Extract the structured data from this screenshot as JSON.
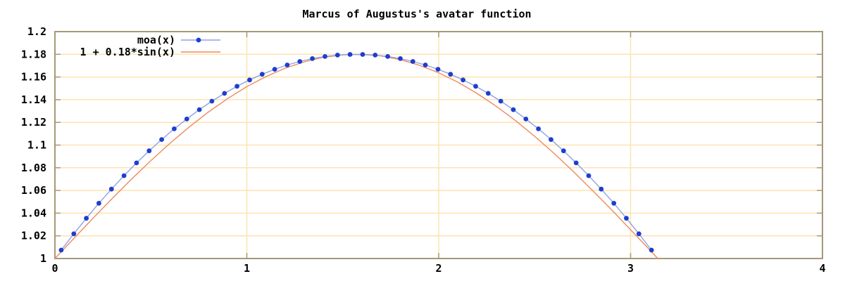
{
  "chart_data": {
    "type": "line",
    "title": "Marcus of Augustus's avatar function",
    "xlabel": "",
    "ylabel": "",
    "xlim": [
      0,
      4
    ],
    "ylim": [
      1,
      1.2
    ],
    "xticks": [
      0,
      1,
      2,
      3,
      4
    ],
    "xtick_labels": [
      "0",
      "1",
      "2",
      "3",
      "4"
    ],
    "yticks": [
      1,
      1.02,
      1.04,
      1.06,
      1.08,
      1.1,
      1.12,
      1.14,
      1.16,
      1.18,
      1.2
    ],
    "ytick_labels": [
      "1",
      "1.02",
      "1.04",
      "1.06",
      "1.08",
      "1.1",
      "1.12",
      "1.14",
      "1.16",
      "1.18",
      "1.2"
    ],
    "grid": true,
    "legend_position": "top-left-inside",
    "colors": {
      "background": "#ffffff",
      "grid": "#ffe2b0",
      "border": "#a89878",
      "text": "#000000",
      "series_moa_marker": "#1e3ecd",
      "series_moa_line": "#8ea0e8",
      "series_sine_line": "#ee8a5c"
    },
    "series": [
      {
        "name": "moa(x)",
        "marker": "point",
        "points": [
          [
            0.0327,
            1.0074
          ],
          [
            0.0982,
            1.0218
          ],
          [
            0.1636,
            1.0355
          ],
          [
            0.2291,
            1.0487
          ],
          [
            0.2945,
            1.0612
          ],
          [
            0.36,
            1.073
          ],
          [
            0.4254,
            1.0843
          ],
          [
            0.4909,
            1.0949
          ],
          [
            0.5563,
            1.1049
          ],
          [
            0.6218,
            1.1143
          ],
          [
            0.6872,
            1.123
          ],
          [
            0.7527,
            1.1312
          ],
          [
            0.8181,
            1.1387
          ],
          [
            0.8836,
            1.1456
          ],
          [
            0.949,
            1.1518
          ],
          [
            1.0145,
            1.1574
          ],
          [
            1.0799,
            1.1624
          ],
          [
            1.1454,
            1.1668
          ],
          [
            1.2108,
            1.1706
          ],
          [
            1.2763,
            1.1737
          ],
          [
            1.3417,
            1.1762
          ],
          [
            1.4072,
            1.1781
          ],
          [
            1.4726,
            1.1793
          ],
          [
            1.5381,
            1.1799
          ],
          [
            1.6035,
            1.1799
          ],
          [
            1.669,
            1.1793
          ],
          [
            1.7344,
            1.1781
          ],
          [
            1.7999,
            1.1762
          ],
          [
            1.8653,
            1.1737
          ],
          [
            1.9308,
            1.1706
          ],
          [
            1.9962,
            1.1668
          ],
          [
            2.0617,
            1.1624
          ],
          [
            2.1271,
            1.1574
          ],
          [
            2.1926,
            1.1518
          ],
          [
            2.258,
            1.1456
          ],
          [
            2.3235,
            1.1387
          ],
          [
            2.3889,
            1.1312
          ],
          [
            2.4544,
            1.123
          ],
          [
            2.5198,
            1.1143
          ],
          [
            2.5853,
            1.1049
          ],
          [
            2.6507,
            1.0949
          ],
          [
            2.7162,
            1.0843
          ],
          [
            2.7816,
            1.073
          ],
          [
            2.8471,
            1.0612
          ],
          [
            2.9125,
            1.0487
          ],
          [
            2.978,
            1.0355
          ],
          [
            3.0434,
            1.0218
          ],
          [
            3.1089,
            1.0074
          ]
        ]
      },
      {
        "name": "1 + 0.18*sin(x)",
        "marker": "none",
        "points": [
          [
            0.0,
            1.0
          ],
          [
            0.1,
            1.018
          ],
          [
            0.2,
            1.0358
          ],
          [
            0.3,
            1.0532
          ],
          [
            0.4,
            1.0701
          ],
          [
            0.5,
            1.0863
          ],
          [
            0.6,
            1.1016
          ],
          [
            0.7,
            1.116
          ],
          [
            0.8,
            1.1291
          ],
          [
            0.9,
            1.141
          ],
          [
            1.0,
            1.1515
          ],
          [
            1.1,
            1.1604
          ],
          [
            1.2,
            1.1678
          ],
          [
            1.3,
            1.1734
          ],
          [
            1.4,
            1.1774
          ],
          [
            1.5,
            1.1795
          ],
          [
            1.6,
            1.1799
          ],
          [
            1.7,
            1.1786
          ],
          [
            1.8,
            1.1753
          ],
          [
            1.9,
            1.1703
          ],
          [
            2.0,
            1.1637
          ],
          [
            2.1,
            1.1554
          ],
          [
            2.2,
            1.1455
          ],
          [
            2.3,
            1.1342
          ],
          [
            2.4,
            1.1216
          ],
          [
            2.5,
            1.1077
          ],
          [
            2.6,
            1.0929
          ],
          [
            2.7,
            1.0769
          ],
          [
            2.8,
            1.0602
          ],
          [
            2.9,
            1.0431
          ],
          [
            3.0,
            1.0254
          ],
          [
            3.1,
            1.0075
          ],
          [
            3.1416,
            1.0
          ]
        ]
      }
    ]
  }
}
